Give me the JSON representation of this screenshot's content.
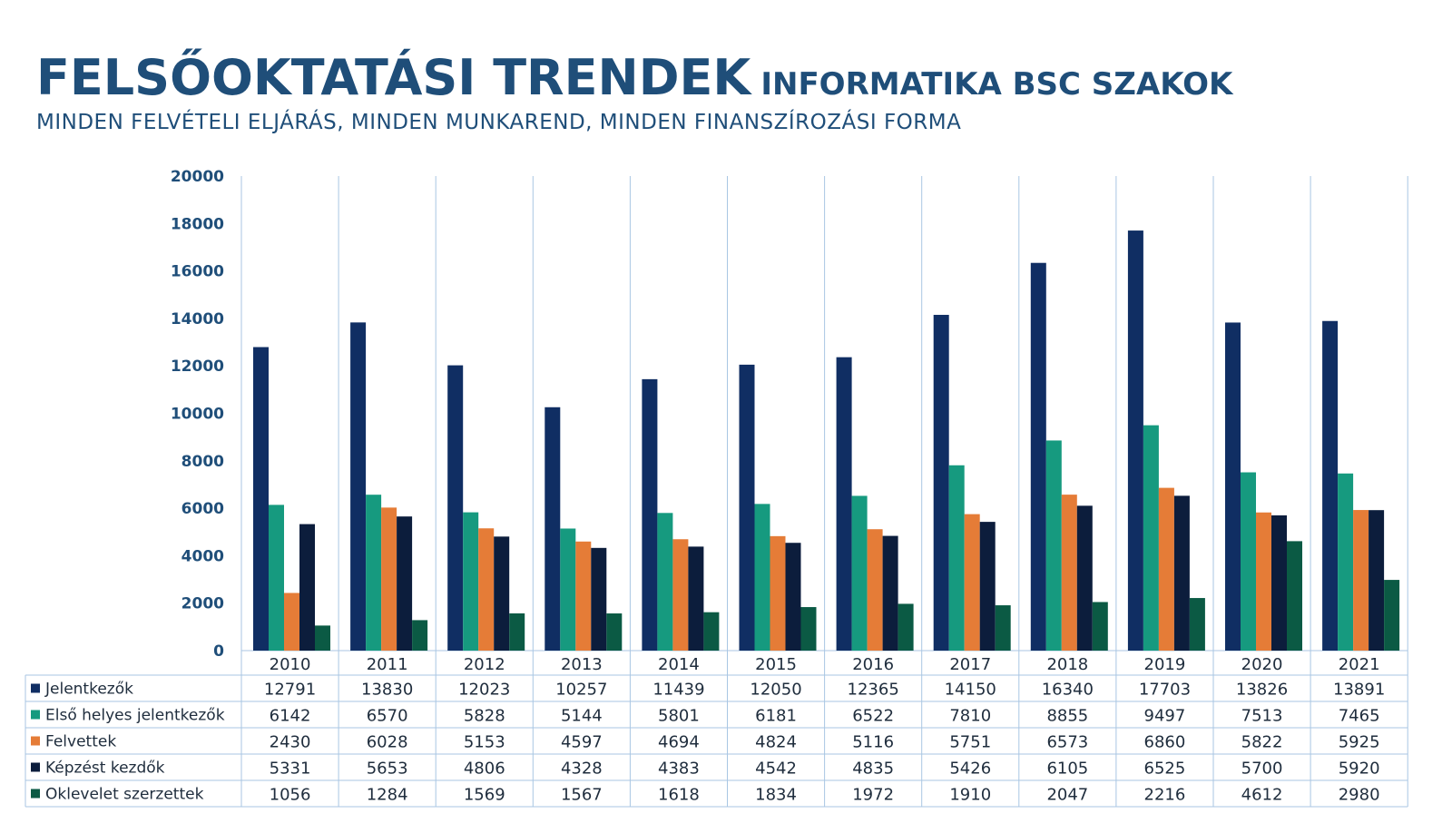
{
  "header": {
    "title": "FELSŐOKTATÁSI TRENDEK",
    "title_suffix": "INFORMATIKA BSC SZAKOK",
    "subtitle": "MINDEN FELVÉTELI ELJÁRÁS, MINDEN MUNKAREND, MINDEN FINANSZÍROZÁSI FORMA"
  },
  "chart_data": {
    "type": "bar",
    "categories": [
      "2010",
      "2011",
      "2012",
      "2013",
      "2014",
      "2015",
      "2016",
      "2017",
      "2018",
      "2019",
      "2020",
      "2021"
    ],
    "ylim": [
      0,
      20000
    ],
    "yticks": [
      0,
      2000,
      4000,
      6000,
      8000,
      10000,
      12000,
      14000,
      16000,
      18000,
      20000
    ],
    "grid": "vertical category separators",
    "legend": "data table below chart",
    "series": [
      {
        "name": "Jelentkezők",
        "color": "#102e63",
        "values": [
          12791,
          13830,
          12023,
          10257,
          11439,
          12050,
          12365,
          14150,
          16340,
          17703,
          13826,
          13891
        ]
      },
      {
        "name": "Első helyes jelentkezők",
        "color": "#169a7f",
        "values": [
          6142,
          6570,
          5828,
          5144,
          5801,
          6181,
          6522,
          7810,
          8855,
          9497,
          7513,
          7465
        ]
      },
      {
        "name": "Felvettek",
        "color": "#e57c37",
        "values": [
          2430,
          6028,
          5153,
          4597,
          4694,
          4824,
          5116,
          5751,
          6573,
          6860,
          5822,
          5925
        ]
      },
      {
        "name": "Képzést kezdők",
        "color": "#0c1d3c",
        "values": [
          5331,
          5653,
          4806,
          4328,
          4383,
          4542,
          4835,
          5426,
          6105,
          6525,
          5700,
          5920
        ]
      },
      {
        "name": "Oklevelet szerzettek",
        "color": "#0b5a44",
        "values": [
          1056,
          1284,
          1569,
          1567,
          1618,
          1834,
          1972,
          1910,
          2047,
          2216,
          4612,
          2980
        ]
      }
    ]
  }
}
